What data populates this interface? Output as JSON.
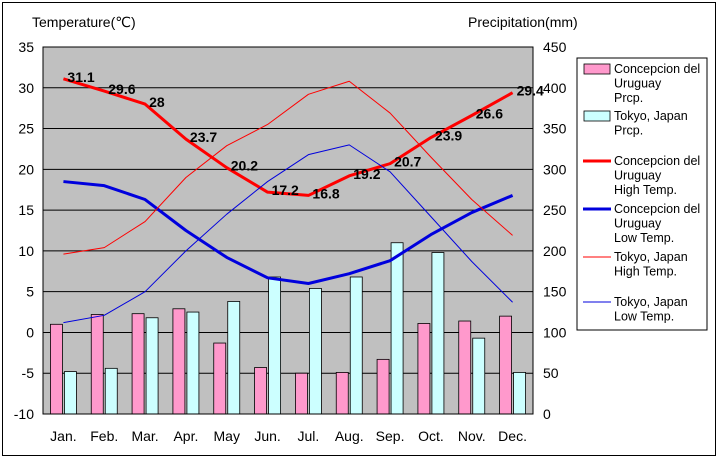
{
  "chart_data": {
    "type": "bar+line",
    "categories": [
      "Jan.",
      "Feb.",
      "Mar.",
      "Apr.",
      "May",
      "Jun.",
      "Jul.",
      "Aug.",
      "Sep.",
      "Oct.",
      "Nov.",
      "Dec."
    ],
    "left_axis": {
      "label": "Temperature(℃)",
      "min": -10,
      "max": 35,
      "step": 5
    },
    "right_axis": {
      "label": "Precipitation(mm)",
      "min": 0,
      "max": 450,
      "step": 50
    },
    "bar_series": [
      {
        "name": "Concepcion del Uruguay Prcp.",
        "legend_lines": [
          "Concepcion del",
          "Uruguay",
          "Prcp."
        ],
        "color": "#ff99cc",
        "values": [
          110,
          122,
          123,
          129,
          87,
          57,
          50,
          51,
          67,
          111,
          114,
          120
        ]
      },
      {
        "name": "Tokyo, Japan Prcp.",
        "legend_lines": [
          "Tokyo, Japan",
          "Prcp."
        ],
        "color": "#ccffff",
        "values": [
          52,
          56,
          118,
          125,
          138,
          168,
          154,
          168,
          210,
          198,
          93,
          51
        ]
      }
    ],
    "line_series": [
      {
        "name": "Concepcion del Uruguay High Temp.",
        "legend_lines": [
          "Concepcion del",
          "Uruguay",
          "High Temp."
        ],
        "color": "#ff0000",
        "width": 3,
        "values": [
          31.1,
          29.6,
          28,
          23.7,
          20.2,
          17.2,
          16.8,
          19.2,
          20.7,
          23.9,
          26.6,
          29.4
        ],
        "labeled": true
      },
      {
        "name": "Concepcion del Uruguay Low Temp.",
        "legend_lines": [
          "Concepcion del",
          "Uruguay",
          "Low Temp."
        ],
        "color": "#0000dd",
        "width": 3,
        "values": [
          18.5,
          18.0,
          16.3,
          12.5,
          9.2,
          6.7,
          6.0,
          7.2,
          8.8,
          12.0,
          14.7,
          16.8
        ],
        "labeled": false
      },
      {
        "name": "Tokyo, Japan High Temp.",
        "legend_lines": [
          "Tokyo, Japan",
          "High Temp."
        ],
        "color": "#ff0000",
        "width": 1,
        "values": [
          9.6,
          10.4,
          13.6,
          19.0,
          22.9,
          25.5,
          29.2,
          30.8,
          26.9,
          21.5,
          16.3,
          11.9
        ],
        "labeled": false
      },
      {
        "name": "Tokyo, Japan Low Temp.",
        "legend_lines": [
          "Tokyo, Japan",
          "Low Temp."
        ],
        "color": "#0000dd",
        "width": 1,
        "values": [
          1.2,
          2.1,
          5.0,
          10.0,
          14.5,
          18.5,
          21.8,
          23.0,
          19.7,
          14.2,
          8.7,
          3.7
        ],
        "labeled": false
      }
    ],
    "grid": true,
    "legend_position": "right"
  }
}
